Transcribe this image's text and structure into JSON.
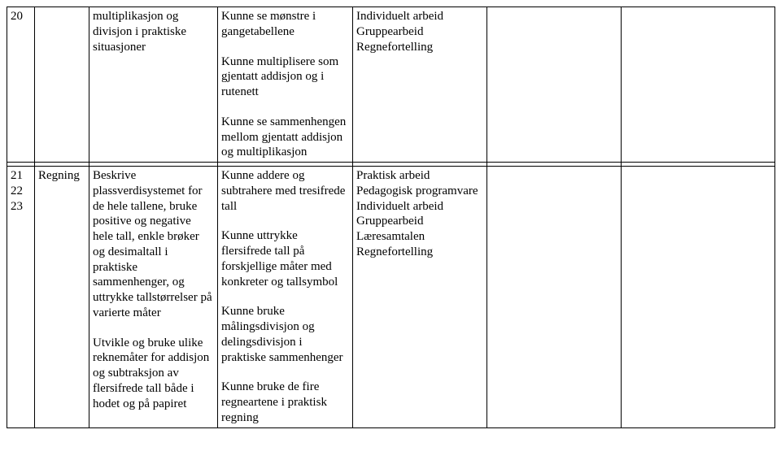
{
  "rows": [
    {
      "week": "20",
      "colA": "",
      "colB_paras": [
        "multiplikasjon og divisjon i praktiske situasjoner"
      ],
      "colC_paras": [
        "Kunne se mønstre i gangetabellene",
        "",
        "Kunne multiplisere som gjentatt addisjon og i rutenett",
        "",
        "Kunne se sammenhengen mellom gjentatt addisjon og multiplikasjon"
      ],
      "colD_paras": [
        "Individuelt arbeid",
        "Gruppearbeid",
        "Regnefortelling"
      ],
      "colE_paras": [],
      "colF_paras": []
    },
    {
      "week": "",
      "colA": "",
      "colB_paras": [],
      "colC_paras": [],
      "colD_paras": [],
      "colE_paras": [],
      "colF_paras": []
    },
    {
      "week": "21\n22\n23",
      "colA": "Regning",
      "colB_paras": [
        "Beskrive plassverdisystemet for de hele tallene, bruke positive og negative hele tall, enkle brøker og desimaltall i praktiske sammenhenger, og uttrykke tallstørrelser på varierte måter",
        "",
        "Utvikle og bruke ulike reknemåter for addisjon og subtraksjon av flersifrede  tall både i hodet og på papiret"
      ],
      "colC_paras": [
        "Kunne addere og subtrahere med tresifrede tall",
        "",
        "Kunne uttrykke flersifrede tall på forskjellige måter med konkreter og tallsymbol",
        "",
        "Kunne bruke målingsdivisjon og delingsdivisjon i praktiske sammenhenger",
        "",
        "Kunne bruke de fire regneartene i praktisk regning"
      ],
      "colD_paras": [
        "Praktisk arbeid",
        "Pedagogisk programvare",
        "Individuelt arbeid",
        "Gruppearbeid",
        "Læresamtalen",
        "Regnefortelling"
      ],
      "colE_paras": [],
      "colF_paras": []
    }
  ]
}
